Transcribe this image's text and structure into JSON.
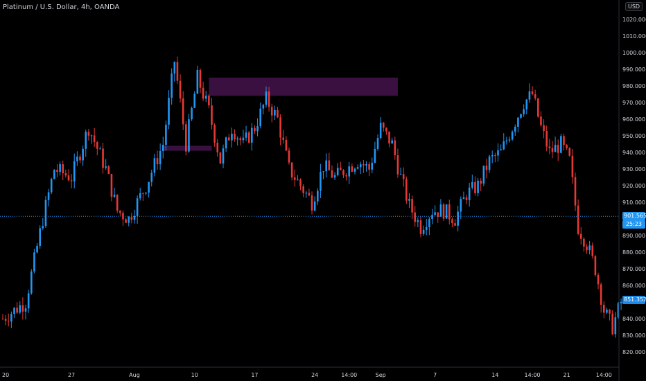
{
  "header": {
    "symbol_title": "Platinum / U.S. Dollar, 4h, OANDA",
    "currency_button": "USD"
  },
  "price_labels": {
    "last_price": "901.565",
    "countdown": "25:23",
    "crosshair_price": "851.352"
  },
  "colors": {
    "up": "#2196f3",
    "down": "#e53935",
    "zone": "#3a1040",
    "last_price_bg": "#2196f3",
    "crosshair_bg": "#1e88e5"
  },
  "chart_data": {
    "type": "candlestick",
    "instrument": "Platinum / U.S. Dollar",
    "timeframe": "4h",
    "source": "OANDA",
    "ylim": [
      815,
      1025
    ],
    "yticks": [
      820,
      830,
      840,
      850,
      860,
      870,
      880,
      890,
      900,
      910,
      920,
      930,
      940,
      950,
      960,
      970,
      980,
      990,
      1000,
      1010,
      1020
    ],
    "ytick_labels": [
      "820.000",
      "830.000",
      "840.000",
      "850.000",
      "860.000",
      "870.000",
      "880.000",
      "890.000",
      "900.000",
      "910.000",
      "920.000",
      "930.000",
      "940.000",
      "950.000",
      "960.000",
      "970.000",
      "980.000",
      "990.000",
      "1000.000",
      "1010.000",
      "1020.000"
    ],
    "xticks": [
      "20",
      "27",
      "Aug",
      "10",
      "17",
      "24",
      "14:00",
      "Sep",
      "7",
      "14",
      "14:00",
      "21",
      "14:00"
    ],
    "xtick_bars": [
      1,
      24,
      46,
      67,
      88,
      109,
      121,
      132,
      151,
      172,
      185,
      197,
      210
    ],
    "last_price": 901.565,
    "zones": [
      {
        "from_bar": 72,
        "to_bar": 138,
        "top": 985,
        "bottom": 974
      },
      {
        "from_bar": 56,
        "to_bar": 73,
        "top": 944,
        "bottom": 941
      }
    ],
    "close_path": [
      [
        0,
        840
      ],
      [
        8,
        850
      ],
      [
        14,
        900
      ],
      [
        18,
        930
      ],
      [
        24,
        925
      ],
      [
        30,
        955
      ],
      [
        36,
        930
      ],
      [
        40,
        905
      ],
      [
        44,
        900
      ],
      [
        50,
        920
      ],
      [
        56,
        945
      ],
      [
        60,
        995
      ],
      [
        64,
        945
      ],
      [
        68,
        985
      ],
      [
        72,
        965
      ],
      [
        76,
        935
      ],
      [
        80,
        955
      ],
      [
        84,
        945
      ],
      [
        88,
        955
      ],
      [
        92,
        972
      ],
      [
        96,
        960
      ],
      [
        100,
        930
      ],
      [
        104,
        920
      ],
      [
        108,
        910
      ],
      [
        112,
        932
      ],
      [
        116,
        925
      ],
      [
        120,
        930
      ],
      [
        124,
        935
      ],
      [
        128,
        930
      ],
      [
        132,
        955
      ],
      [
        136,
        945
      ],
      [
        139,
        925
      ],
      [
        142,
        908
      ],
      [
        146,
        895
      ],
      [
        150,
        905
      ],
      [
        154,
        905
      ],
      [
        158,
        900
      ],
      [
        162,
        915
      ],
      [
        166,
        920
      ],
      [
        170,
        935
      ],
      [
        174,
        940
      ],
      [
        178,
        955
      ],
      [
        182,
        970
      ],
      [
        185,
        975
      ],
      [
        188,
        955
      ],
      [
        191,
        940
      ],
      [
        195,
        945
      ],
      [
        198,
        935
      ],
      [
        201,
        895
      ],
      [
        204,
        885
      ],
      [
        207,
        870
      ],
      [
        210,
        845
      ],
      [
        213,
        835
      ],
      [
        216,
        850
      ]
    ]
  }
}
